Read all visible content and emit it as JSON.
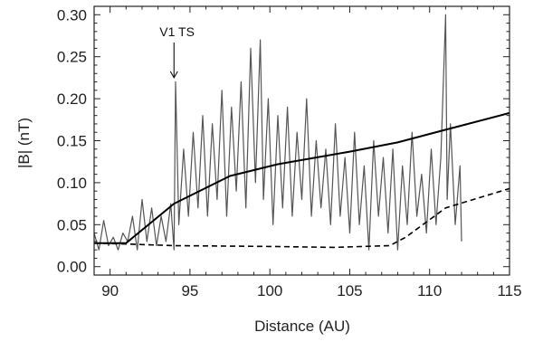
{
  "chart_data": {
    "type": "line",
    "title": "",
    "xlabel": "Distance (AU)",
    "ylabel": "|B| (nT)",
    "xlim": [
      89,
      115
    ],
    "ylim": [
      -0.01,
      0.31
    ],
    "x_ticks": [
      90,
      95,
      100,
      105,
      110,
      115
    ],
    "x_tick_labels": [
      "90",
      "95",
      "100",
      "105",
      "110",
      "115"
    ],
    "y_ticks": [
      0.0,
      0.05,
      0.1,
      0.15,
      0.2,
      0.25,
      0.3
    ],
    "y_tick_labels": [
      "0.00",
      "0.05",
      "0.10",
      "0.15",
      "0.20",
      "0.25",
      "0.30"
    ],
    "grid": false,
    "annotations": [
      {
        "text": "V1 TS",
        "x": 94.0,
        "arrow_to_y": 0.225
      }
    ],
    "colors": {
      "data": "#555555",
      "model_solid": "#000000",
      "model_dashed": "#000000"
    },
    "series": [
      {
        "style": "noisy-gray",
        "x": [
          89.0,
          89.3,
          89.6,
          89.9,
          90.2,
          90.5,
          90.8,
          91.1,
          91.4,
          91.7,
          92.0,
          92.3,
          92.6,
          92.9,
          93.2,
          93.5,
          93.8,
          94.0,
          94.1,
          94.3,
          94.6,
          94.9,
          95.2,
          95.5,
          95.8,
          96.1,
          96.4,
          96.7,
          97.0,
          97.3,
          97.6,
          97.9,
          98.2,
          98.5,
          98.8,
          99.1,
          99.4,
          99.6,
          99.9,
          100.2,
          100.5,
          100.8,
          101.1,
          101.4,
          101.7,
          102.0,
          102.3,
          102.6,
          102.9,
          103.2,
          103.5,
          103.8,
          104.1,
          104.4,
          104.7,
          105.0,
          105.3,
          105.6,
          105.9,
          106.2,
          106.5,
          106.8,
          107.1,
          107.4,
          107.7,
          108.0,
          108.3,
          108.6,
          108.9,
          109.2,
          109.5,
          109.8,
          110.1,
          110.4,
          110.7,
          111.0,
          111.1,
          111.3,
          111.6,
          111.9,
          112.0
        ],
        "y": [
          0.04,
          0.02,
          0.055,
          0.025,
          0.035,
          0.02,
          0.04,
          0.03,
          0.06,
          0.02,
          0.08,
          0.03,
          0.07,
          0.025,
          0.06,
          0.03,
          0.075,
          0.02,
          0.22,
          0.05,
          0.14,
          0.06,
          0.16,
          0.07,
          0.18,
          0.06,
          0.17,
          0.08,
          0.21,
          0.06,
          0.19,
          0.09,
          0.22,
          0.07,
          0.26,
          0.1,
          0.27,
          0.08,
          0.2,
          0.05,
          0.18,
          0.07,
          0.19,
          0.06,
          0.16,
          0.08,
          0.2,
          0.06,
          0.15,
          0.07,
          0.14,
          0.05,
          0.17,
          0.06,
          0.13,
          0.04,
          0.16,
          0.05,
          0.12,
          0.02,
          0.15,
          0.06,
          0.13,
          0.04,
          0.14,
          0.02,
          0.12,
          0.05,
          0.16,
          0.06,
          0.11,
          0.04,
          0.14,
          0.05,
          0.13,
          0.3,
          0.08,
          0.17,
          0.05,
          0.12,
          0.03
        ]
      },
      {
        "style": "solid",
        "x": [
          89.0,
          91.0,
          94.0,
          97.5,
          100.5,
          105.0,
          108.0,
          111.0,
          115.0
        ],
        "y": [
          0.028,
          0.028,
          0.075,
          0.108,
          0.122,
          0.137,
          0.148,
          0.163,
          0.183
        ]
      },
      {
        "style": "dashed",
        "x": [
          89.0,
          91.0,
          94.0,
          100.0,
          104.0,
          107.5,
          108.5,
          111.0,
          115.0
        ],
        "y": [
          0.028,
          0.027,
          0.025,
          0.024,
          0.023,
          0.025,
          0.035,
          0.07,
          0.093
        ]
      }
    ]
  }
}
